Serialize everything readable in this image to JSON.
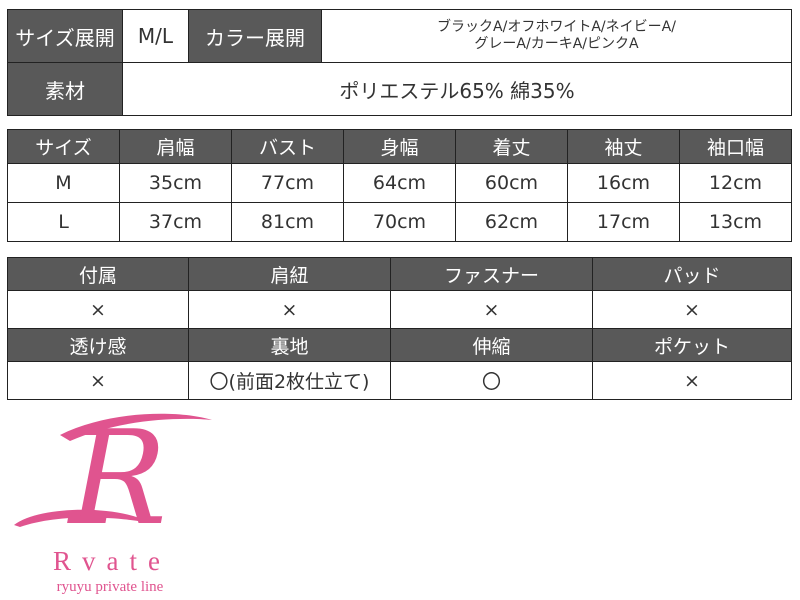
{
  "spec": {
    "size_range_label": "サイズ展開",
    "size_range_value": "M/L",
    "color_range_label": "カラー展開",
    "color_range_line1": "ブラックA/オフホワイトA/ネイビーA/",
    "color_range_line2": "グレーA/カーキA/ピンクA",
    "material_label": "素材",
    "material_value": "ポリエステル65% 綿35%"
  },
  "size_table": {
    "headers": [
      "サイズ",
      "肩幅",
      "バスト",
      "身幅",
      "着丈",
      "袖丈",
      "袖口幅"
    ],
    "rows": [
      [
        "M",
        "35cm",
        "77cm",
        "64cm",
        "60cm",
        "16cm",
        "12cm"
      ],
      [
        "L",
        "37cm",
        "81cm",
        "70cm",
        "62cm",
        "17cm",
        "13cm"
      ]
    ]
  },
  "features": {
    "headers1": [
      "付属",
      "肩紐",
      "ファスナー",
      "パッド"
    ],
    "values1": [
      "×",
      "×",
      "×",
      "×"
    ],
    "headers2": [
      "透け感",
      "裏地",
      "伸縮",
      "ポケット"
    ],
    "values2": [
      "×",
      "〇(前面2枚仕立て)",
      "〇",
      "×"
    ]
  },
  "logo": {
    "monogram": "R",
    "brand": "Rvate",
    "tagline": "ryuyu private line",
    "color": "#e0548f"
  },
  "colors": {
    "header_bg": "#595959",
    "header_text": "#ffffff"
  }
}
